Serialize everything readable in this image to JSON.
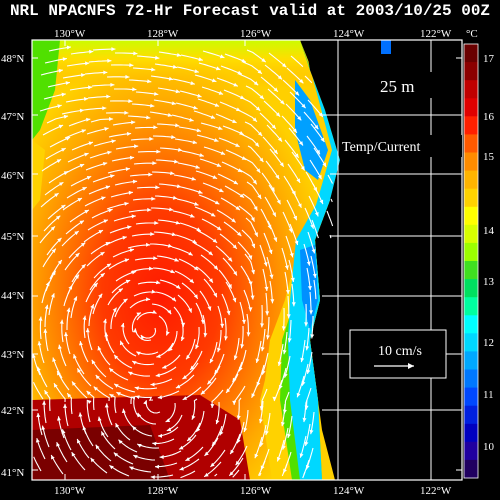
{
  "title": "NRL NPACNFS 72-Hr Forecast valid at 2003/10/25 00Z",
  "depth_label": "25 m",
  "field_label": "Temp/Current",
  "scale_label": "10 cm/s",
  "colorbar": {
    "unit": "°C",
    "ticks": [
      "17",
      "16",
      "15",
      "14",
      "13",
      "12",
      "11",
      "10"
    ],
    "colors": [
      "#6a0000",
      "#8b0000",
      "#c00000",
      "#e00000",
      "#ff2000",
      "#ff5a00",
      "#ff8c00",
      "#ffb400",
      "#ffd200",
      "#ffff00",
      "#d8ff00",
      "#9cff00",
      "#40e020",
      "#00e060",
      "#00ffa0",
      "#00ffff",
      "#00d8ff",
      "#00a8ff",
      "#0078ff",
      "#0048ff",
      "#0020e0",
      "#0000c0",
      "#2000a0",
      "#200060"
    ]
  },
  "x_axis": {
    "top_labels": [
      "130°W",
      "128°W",
      "126°W",
      "124°W",
      "122°W"
    ],
    "bottom_labels": [
      "130°W",
      "128°W",
      "126°W",
      "124°W",
      "122°W"
    ]
  },
  "y_axis": {
    "labels": [
      "48°N",
      "47°N",
      "46°N",
      "45°N",
      "44°N",
      "43°N",
      "42°N",
      "41°N"
    ]
  }
}
